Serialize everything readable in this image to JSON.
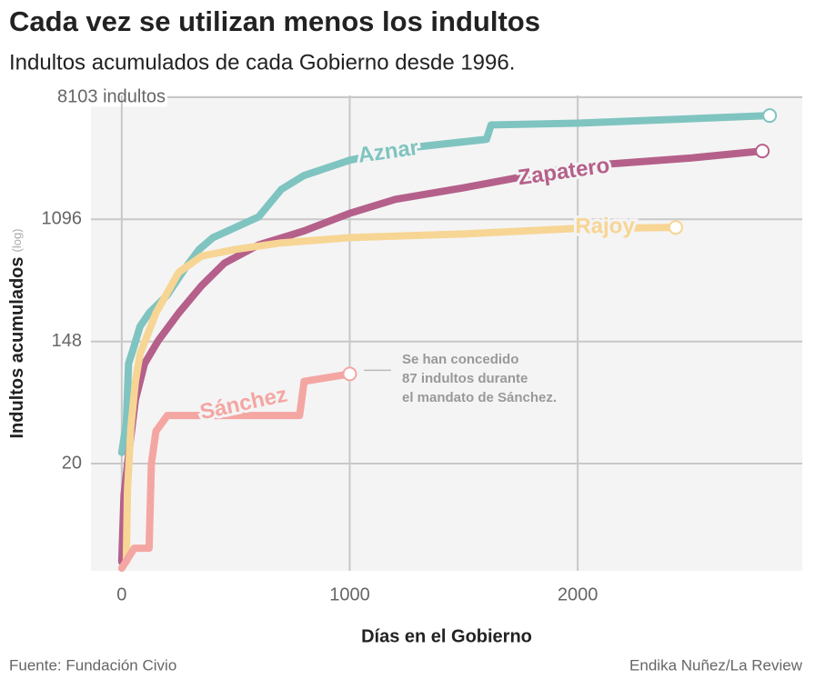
{
  "chart_data": {
    "type": "line",
    "title": "Cada vez se utilizan menos los indultos",
    "subtitle": "Indultos acumulados de cada Gobierno desde 1996.",
    "x_label": "Días en el Gobierno",
    "y_label": "Indultos acumulados",
    "y_label_note": "(log)",
    "source": "Fuente: Fundación Civio",
    "credit": "Endika Nuñez/La Review",
    "annotation": [
      "Se han concedido",
      "87 indultos durante",
      "el mandato de Sánchez."
    ],
    "yscale": "log",
    "grid": true,
    "xlim": [
      -135,
      2985
    ],
    "ylim": [
      3.45,
      8350
    ],
    "xticks": [
      0,
      1000,
      2000
    ],
    "yticks": [
      20,
      148,
      1096,
      {
        "value": 8103,
        "label": "8103 indultos"
      }
    ],
    "series": [
      {
        "name": "Aznar",
        "color": "#7fc4c0",
        "x": [
          0,
          20,
          30,
          50,
          80,
          120,
          200,
          280,
          340,
          400,
          600,
          700,
          800,
          1000,
          1300,
          1600,
          1620,
          2000,
          2842
        ],
        "values": [
          24,
          39,
          103,
          130,
          189,
          236,
          317,
          497,
          670,
          812,
          1140,
          1790,
          2250,
          2890,
          3600,
          4070,
          5150,
          5300,
          6000
        ]
      },
      {
        "name": "Zapatero",
        "color": "#b5608a",
        "x": [
          0,
          10,
          30,
          60,
          100,
          160,
          250,
          350,
          450,
          600,
          800,
          1000,
          1200,
          1500,
          2000,
          2500,
          2810
        ],
        "values": [
          4,
          12,
          23,
          57,
          103,
          150,
          236,
          369,
          534,
          720,
          907,
          1210,
          1520,
          1840,
          2610,
          3000,
          3360
        ]
      },
      {
        "name": "Rajoy",
        "color": "#f7d594",
        "x": [
          20,
          25,
          40,
          60,
          80,
          150,
          250,
          350,
          500,
          700,
          1000,
          1500,
          2000,
          2430
        ],
        "values": [
          4,
          12.8,
          36,
          77,
          120,
          236,
          460,
          600,
          670,
          745,
          812,
          863,
          945,
          960
        ]
      },
      {
        "name": "Sánchez",
        "color": "#f4a6a3",
        "x": [
          0,
          55,
          120,
          130,
          150,
          200,
          780,
          800,
          1000
        ],
        "values": [
          3.6,
          5,
          5,
          20,
          34,
          44,
          44,
          77,
          87
        ]
      }
    ]
  }
}
